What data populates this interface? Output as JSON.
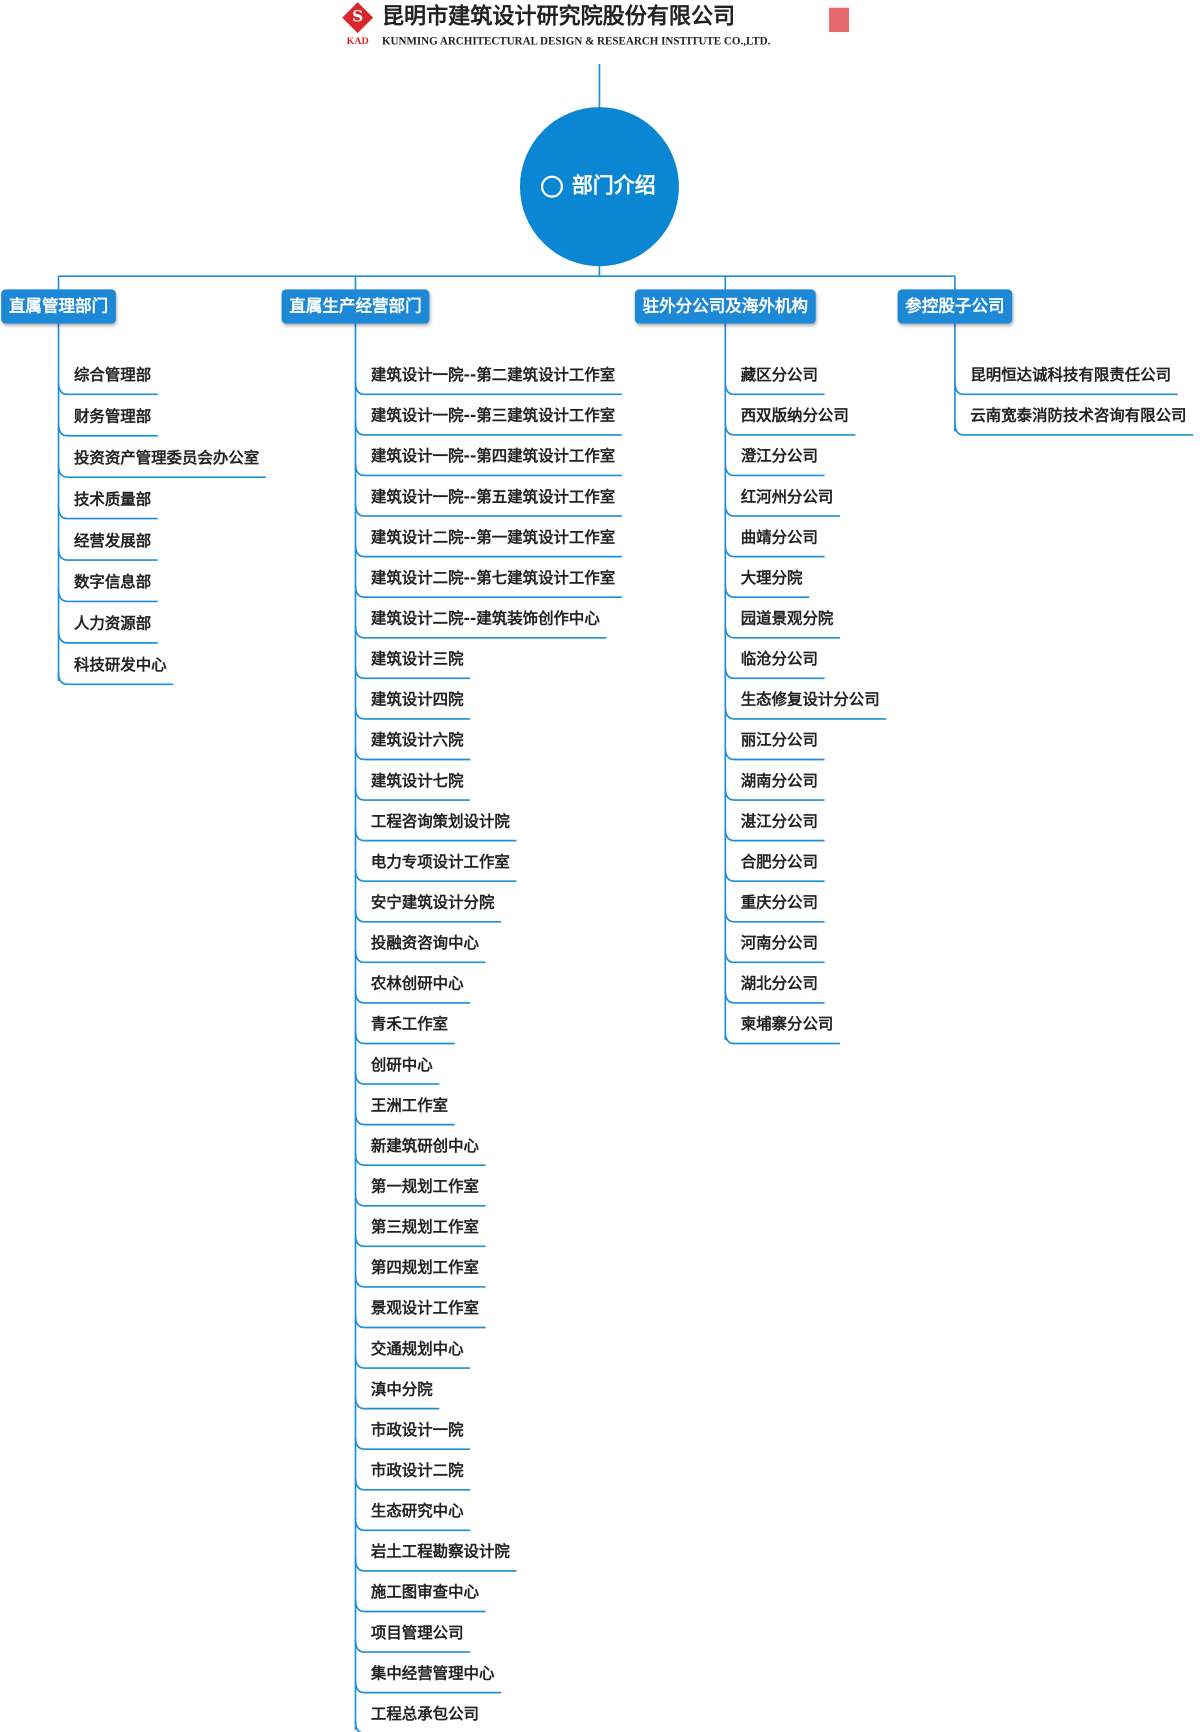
{
  "header": {
    "logo_text": "KAD",
    "company_cn": "昆明市建筑设计研究院股份有限公司",
    "company_en": "KUNMING ARCHITECTURAL DESIGN & RESEARCH INSTITUTE CO.,LTD."
  },
  "root": {
    "label": "部门介绍"
  },
  "branches": [
    {
      "label": "直属管理部门",
      "items": [
        "综合管理部",
        "财务管理部",
        "投资资产管理委员会办公室",
        "技术质量部",
        "经营发展部",
        "数字信息部",
        "人力资源部",
        "科技研发中心"
      ]
    },
    {
      "label": "直属生产经营部门",
      "items": [
        "建筑设计一院--第二建筑设计工作室",
        "建筑设计一院--第三建筑设计工作室",
        "建筑设计一院--第四建筑设计工作室",
        "建筑设计一院--第五建筑设计工作室",
        "建筑设计二院--第一建筑设计工作室",
        "建筑设计二院--第七建筑设计工作室",
        "建筑设计二院--建筑装饰创作中心",
        "建筑设计三院",
        "建筑设计四院",
        "建筑设计六院",
        "建筑设计七院",
        "工程咨询策划设计院",
        "电力专项设计工作室",
        "安宁建筑设计分院",
        "投融资咨询中心",
        "农林创研中心",
        "青禾工作室",
        "创研中心",
        "王洲工作室",
        "新建筑研创中心",
        "第一规划工作室",
        "第三规划工作室",
        "第四规划工作室",
        "景观设计工作室",
        "交通规划中心",
        "滇中分院",
        "市政设计一院",
        "市政设计二院",
        "生态研究中心",
        "岩土工程勘察设计院",
        "施工图审查中心",
        "项目管理公司",
        "集中经营管理中心",
        "工程总承包公司"
      ]
    },
    {
      "label": "驻外分公司及海外机构",
      "items": [
        "藏区分公司",
        "西双版纳分公司",
        "澄江分公司",
        "红河州分公司",
        "曲靖分公司",
        "大理分院",
        "园道景观分院",
        "临沧分公司",
        "生态修复设计分公司",
        "丽江分公司",
        "湖南分公司",
        "湛江分公司",
        "合肥分公司",
        "重庆分公司",
        "河南分公司",
        "湖北分公司",
        "柬埔寨分公司"
      ]
    },
    {
      "label": "参控股子公司",
      "items": [
        "昆明恒达诚科技有限责任公司",
        "云南宽泰消防技术咨询有限公司"
      ]
    }
  ]
}
